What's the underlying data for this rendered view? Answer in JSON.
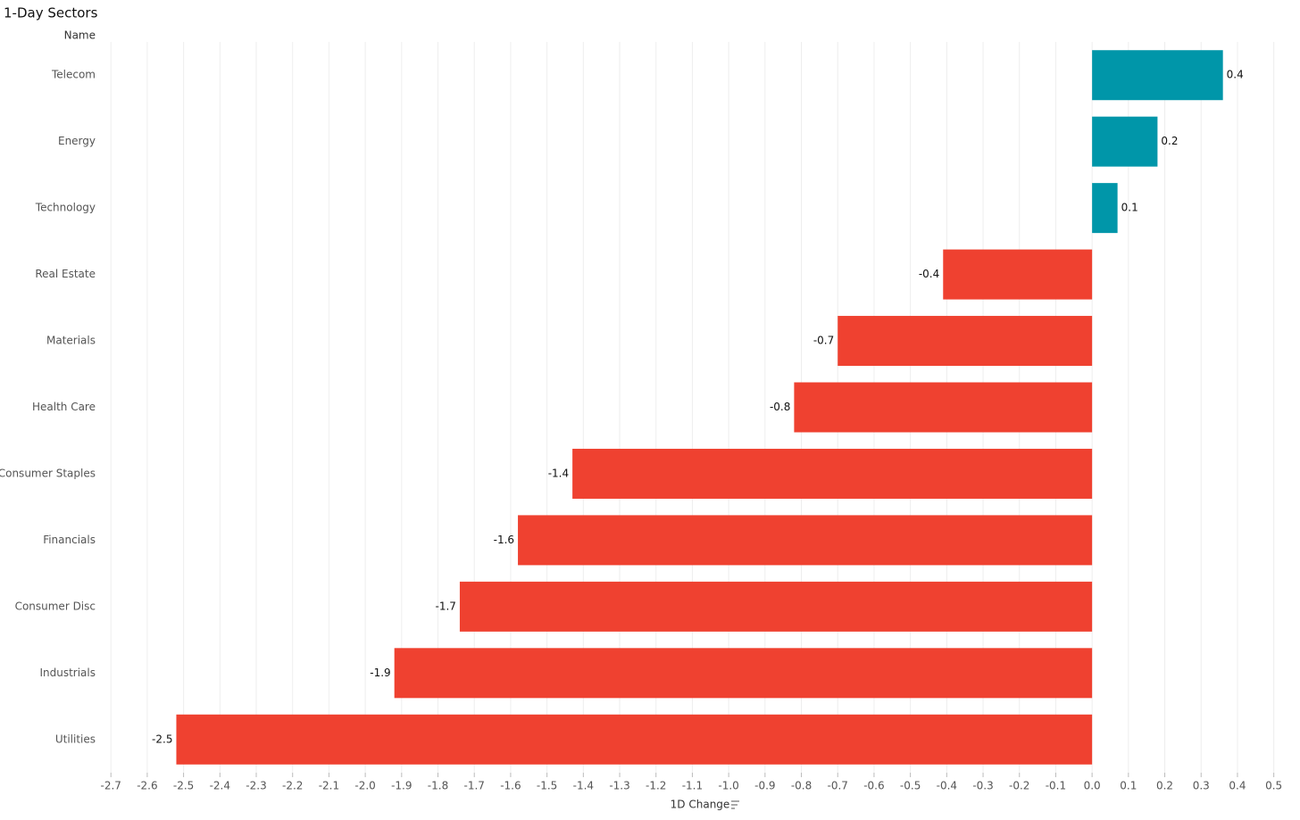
{
  "chart_data": {
    "type": "bar",
    "orientation": "horizontal",
    "title": "1-Day Sectors",
    "category_axis_title": "Name",
    "x_axis_title": "1D Change",
    "categories": [
      "Telecom",
      "Energy",
      "Technology",
      "Real Estate",
      "Materials",
      "Health Care",
      "Consumer Staples",
      "Financials",
      "Consumer Disc",
      "Industrials",
      "Utilities"
    ],
    "values": [
      0.36,
      0.18,
      0.07,
      -0.41,
      -0.7,
      -0.82,
      -1.43,
      -1.58,
      -1.74,
      -1.92,
      -2.52
    ],
    "value_labels": [
      "0.4",
      "0.2",
      "0.1",
      "-0.4",
      "-0.7",
      "-0.8",
      "-1.4",
      "-1.6",
      "-1.7",
      "-1.9",
      "-2.5"
    ],
    "positive_color": "#0096a9",
    "negative_color": "#ef4130",
    "xlim": [
      -2.73,
      0.55
    ],
    "xticks": [
      -2.7,
      -2.6,
      -2.5,
      -2.4,
      -2.3,
      -2.2,
      -2.1,
      {
        "value": -2,
        "label": "-2.0"
      },
      -1.9,
      -1.8,
      -1.7,
      -1.6,
      -1.5,
      -1.4,
      -1.3,
      -1.2,
      -1.1,
      {
        "value": -1,
        "label": "-1.0"
      },
      -0.9,
      -0.8,
      -0.7,
      -0.6,
      -0.5,
      -0.4,
      -0.3,
      -0.2,
      -0.1,
      {
        "value": 0,
        "label": "0.0"
      },
      0.1,
      0.2,
      0.3,
      0.4,
      0.5
    ],
    "grid": true
  }
}
